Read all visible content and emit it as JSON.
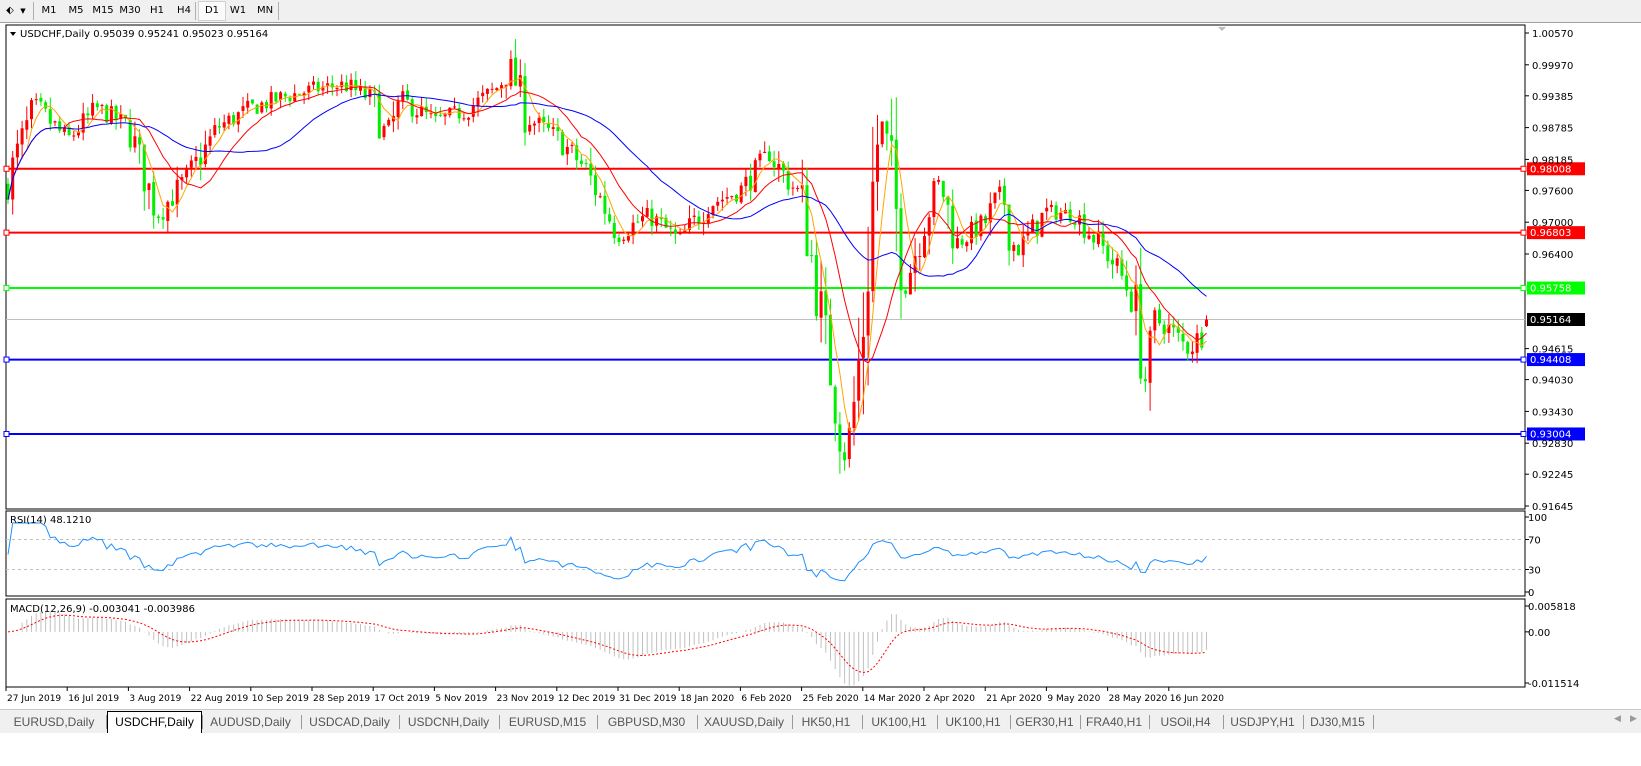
{
  "toolbar": {
    "tool_icon": "line-tools-icon",
    "timeframes": [
      "M1",
      "M5",
      "M15",
      "M30",
      "H1",
      "H4",
      "D1",
      "W1",
      "MN"
    ],
    "active_timeframe": "D1"
  },
  "chart": {
    "header": "USDCHF,Daily  0.95039 0.95241 0.95023 0.95164",
    "symbol": "USDCHF",
    "period": "Daily",
    "ohlc": {
      "open": 0.95039,
      "high": 0.95241,
      "low": 0.95023,
      "close": 0.95164
    },
    "price_axis": [
      "1.00570",
      "0.99970",
      "0.99385",
      "0.98785",
      "0.98185",
      "0.97600",
      "0.97000",
      "0.96400",
      "0.94615",
      "0.94030",
      "0.93430",
      "0.92830",
      "0.92245",
      "0.91645"
    ],
    "current_price": "0.95164",
    "horizontal_lines": [
      {
        "price": "0.98008",
        "color": "#ff0000"
      },
      {
        "price": "0.96803",
        "color": "#ff0000"
      },
      {
        "price": "0.95758",
        "color": "#00ff00"
      },
      {
        "price": "0.94408",
        "color": "#0000ff"
      },
      {
        "price": "0.93004",
        "color": "#0000ff"
      }
    ],
    "colors": {
      "bull": "#ff0000",
      "bear": "#00ee00",
      "ma_fast": "#ffa500",
      "ma_mid": "#ff0000",
      "ma_slow": "#0000ff",
      "rsi": "#1e90ff",
      "macd_hist": "#c0c0c0",
      "macd_signal": "#ff0000"
    }
  },
  "rsi": {
    "header": "RSI(14) 48.1210",
    "axis": [
      "100",
      "70",
      "30",
      "0"
    ]
  },
  "macd": {
    "header": "MACD(12,26,9) -0.003041 -0.003986",
    "axis": [
      "0.005818",
      "0.00",
      "-0.011514"
    ]
  },
  "x_axis": [
    "27 Jun 2019",
    "16 Jul 2019",
    "3 Aug 2019",
    "22 Aug 2019",
    "10 Sep 2019",
    "28 Sep 2019",
    "17 Oct 2019",
    "5 Nov 2019",
    "23 Nov 2019",
    "12 Dec 2019",
    "31 Dec 2019",
    "18 Jan 2020",
    "6 Feb 2020",
    "25 Feb 2020",
    "14 Mar 2020",
    "2 Apr 2020",
    "21 Apr 2020",
    "9 May 2020",
    "28 May 2020",
    "16 Jun 2020"
  ],
  "tabs": [
    "EURUSD,Daily",
    "USDCHF,Daily",
    "AUDUSD,Daily",
    "USDCAD,Daily",
    "USDCNH,Daily",
    "EURUSD,M15",
    "GBPUSD,M30",
    "XAUUSD,Daily",
    "HK50,H1",
    "UK100,H1",
    "UK100,H1",
    "GER30,H1",
    "FRA40,H1",
    "USOil,H4",
    "USDJPY,H1",
    "DJ30,M15"
  ],
  "active_tab": "USDCHF,Daily",
  "chart_data": {
    "type": "candlestick",
    "ylim": [
      0.91645,
      1.0057
    ],
    "approx_closes": [
      [
        "27 Jun 2019",
        0.977
      ],
      [
        "6 Jul 2019",
        0.992
      ],
      [
        "16 Jul 2019",
        0.9855
      ],
      [
        "25 Jul 2019",
        0.9915
      ],
      [
        "3 Aug 2019",
        0.988
      ],
      [
        "12 Aug 2019",
        0.9714
      ],
      [
        "22 Aug 2019",
        0.979
      ],
      [
        "31 Aug 2019",
        0.988
      ],
      [
        "10 Sep 2019",
        0.9915
      ],
      [
        "19 Sep 2019",
        0.9935
      ],
      [
        "28 Sep 2019",
        0.995
      ],
      [
        "8 Oct 2019",
        0.996
      ],
      [
        "17 Oct 2019",
        0.993
      ],
      [
        "21 Oct 2019",
        0.986
      ],
      [
        "26 Oct 2019",
        0.993
      ],
      [
        "5 Nov 2019",
        0.989
      ],
      [
        "14 Nov 2019",
        0.991
      ],
      [
        "23 Nov 2019",
        0.995
      ],
      [
        "28 Nov 2019",
        0.9995
      ],
      [
        "2 Dec 2019",
        0.99
      ],
      [
        "12 Dec 2019",
        0.986
      ],
      [
        "21 Dec 2019",
        0.98
      ],
      [
        "31 Dec 2019",
        0.9676
      ],
      [
        "9 Jan 2020",
        0.9714
      ],
      [
        "18 Jan 2020",
        0.9665
      ],
      [
        "27 Jan 2020",
        0.9733
      ],
      [
        "6 Feb 2020",
        0.976
      ],
      [
        "15 Feb 2020",
        0.9827
      ],
      [
        "25 Feb 2020",
        0.9745
      ],
      [
        "4 Mar 2020",
        0.944
      ],
      [
        "9 Mar 2020",
        0.9251
      ],
      [
        "11 Mar 2020",
        0.933
      ],
      [
        "14 Mar 2020",
        0.95
      ],
      [
        "18 Mar 2020",
        0.9836
      ],
      [
        "20 Mar 2020",
        0.9883
      ],
      [
        "23 Mar 2020",
        0.979
      ],
      [
        "27 Mar 2020",
        0.958
      ],
      [
        "2 Apr 2020",
        0.97
      ],
      [
        "7 Apr 2020",
        0.978
      ],
      [
        "12 Apr 2020",
        0.966
      ],
      [
        "21 Apr 2020",
        0.97
      ],
      [
        "26 Apr 2020",
        0.976
      ],
      [
        "30 Apr 2020",
        0.964
      ],
      [
        "9 May 2020",
        0.972
      ],
      [
        "18 May 2020",
        0.9714
      ],
      [
        "28 May 2020",
        0.964
      ],
      [
        "2 Jun 2020",
        0.9591
      ],
      [
        "6 Jun 2020",
        0.9534
      ],
      [
        "9 Jun 2020",
        0.939
      ],
      [
        "12 Jun 2020",
        0.9515
      ],
      [
        "16 Jun 2020",
        0.95
      ],
      [
        "22 Jun 2020",
        0.946
      ],
      [
        "26 Jun 2020",
        0.9487
      ],
      [
        "29 Jun 2020",
        0.95164
      ]
    ]
  }
}
